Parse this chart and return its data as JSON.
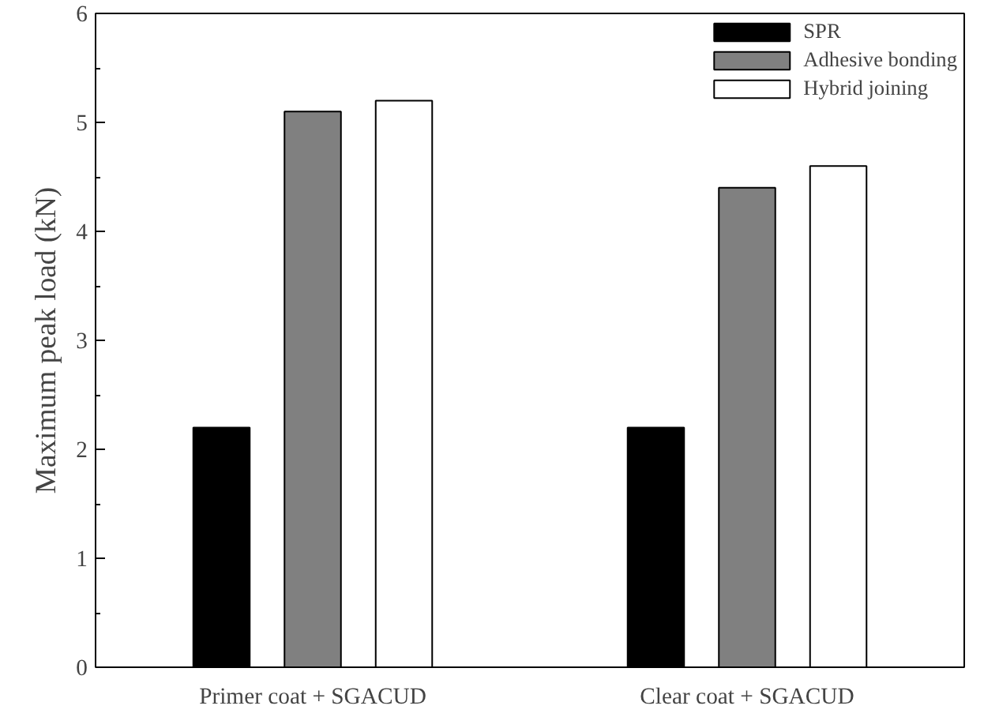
{
  "chart_data": {
    "type": "bar",
    "ylabel": "Maximum peak load (kN)",
    "categories": [
      "Primer coat + SGACUD",
      "Clear coat + SGACUD"
    ],
    "series": [
      {
        "name": "SPR",
        "color": "#000000",
        "values": [
          2.2,
          2.2
        ]
      },
      {
        "name": "Adhesive bonding",
        "color": "#808080",
        "values": [
          5.1,
          4.4
        ]
      },
      {
        "name": "Hybrid joining",
        "color": "#ffffff",
        "values": [
          5.2,
          4.6
        ]
      }
    ],
    "ylim": [
      0,
      6
    ],
    "yticks": [
      0,
      1,
      2,
      3,
      4,
      5,
      6
    ],
    "legend": "top right",
    "grid": false
  }
}
